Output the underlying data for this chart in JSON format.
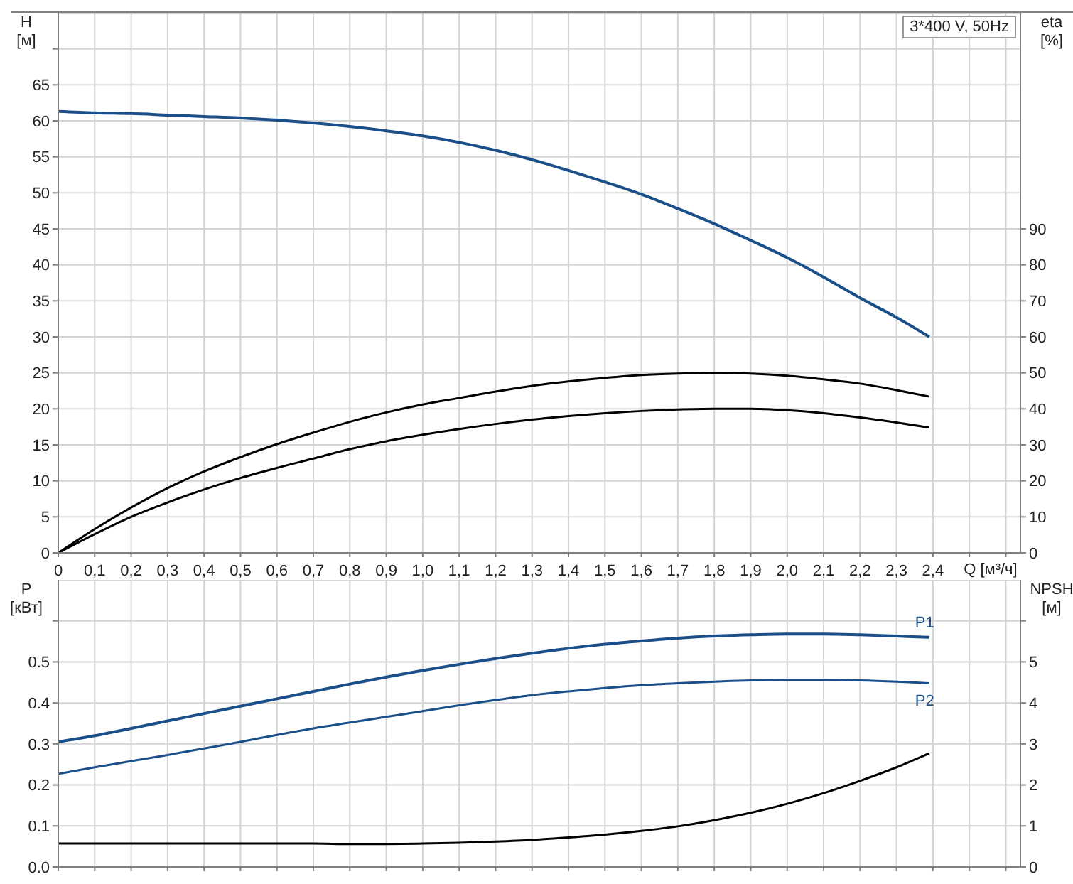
{
  "chart_data": [
    {
      "type": "line",
      "ylabel": "H [м]",
      "y2label": "eta [%]",
      "xlabel": "Q [м³/ч]",
      "annotations": [
        "3*400 V, 50Hz"
      ],
      "xlim": [
        0,
        2.64
      ],
      "xticks": [
        0,
        {
          "value": 0.1,
          "label": "0,1"
        },
        {
          "value": 0.2,
          "label": "0,2"
        },
        {
          "value": 0.3,
          "label": "0,3"
        },
        {
          "value": 0.4,
          "label": "0,4"
        },
        {
          "value": 0.5,
          "label": "0,5"
        },
        {
          "value": 0.6,
          "label": "0,6"
        },
        {
          "value": 0.7,
          "label": "0,7"
        },
        {
          "value": 0.8,
          "label": "0,8"
        },
        {
          "value": 0.9,
          "label": "0,9"
        },
        {
          "value": 1.0,
          "label": "1,0"
        },
        {
          "value": 1.1,
          "label": "1,1"
        },
        {
          "value": 1.2,
          "label": "1,2"
        },
        {
          "value": 1.3,
          "label": "1,3"
        },
        {
          "value": 1.4,
          "label": "1,4"
        },
        {
          "value": 1.5,
          "label": "1,5"
        },
        {
          "value": 1.6,
          "label": "1,6"
        },
        {
          "value": 1.7,
          "label": "1,7"
        },
        {
          "value": 1.8,
          "label": "1,8"
        },
        {
          "value": 1.9,
          "label": "1,9"
        },
        {
          "value": 2.0,
          "label": "2,0"
        },
        {
          "value": 2.1,
          "label": "2,1"
        },
        {
          "value": 2.2,
          "label": "2,2"
        },
        {
          "value": 2.3,
          "label": "2,3"
        },
        {
          "value": 2.4,
          "label": "2,4"
        },
        {
          "value": 2.5,
          "label": null
        },
        {
          "value": 2.6,
          "label": null
        }
      ],
      "ylim": [
        0,
        75
      ],
      "yticks": [
        0,
        5,
        10,
        15,
        20,
        25,
        30,
        35,
        40,
        45,
        50,
        55,
        60,
        65,
        {
          "value": 70,
          "label": null
        }
      ],
      "y2lim": [
        0,
        150
      ],
      "y2ticks": [
        0,
        10,
        20,
        30,
        40,
        50,
        60,
        70,
        80,
        90
      ],
      "grid": true,
      "legend": false,
      "marker": "none",
      "series": [
        {
          "color": "#1b4f8a",
          "x": [
            0,
            0.1,
            0.2,
            0.3,
            0.4,
            0.5,
            0.6,
            0.7,
            0.8,
            0.9,
            1.0,
            1.1,
            1.2,
            1.3,
            1.4,
            1.5,
            1.6,
            1.7,
            1.8,
            1.9,
            2.0,
            2.1,
            2.2,
            2.3,
            2.39
          ],
          "values": [
            61.3,
            61.1,
            61.0,
            60.8,
            60.6,
            60.4,
            60.1,
            59.7,
            59.2,
            58.6,
            57.9,
            57.0,
            55.9,
            54.6,
            53.1,
            51.5,
            49.8,
            47.8,
            45.7,
            43.4,
            41.0,
            38.3,
            35.4,
            32.7,
            30.0
          ]
        },
        {
          "color": "#000000",
          "axis": "y2",
          "x": [
            0,
            0.1,
            0.2,
            0.3,
            0.4,
            0.5,
            0.6,
            0.7,
            0.8,
            0.9,
            1.0,
            1.1,
            1.2,
            1.3,
            1.4,
            1.5,
            1.6,
            1.7,
            1.8,
            1.9,
            2.0,
            2.1,
            2.2,
            2.3,
            2.39
          ],
          "values": [
            0,
            6.6,
            12.6,
            18,
            22.6,
            26.6,
            30.2,
            33.4,
            36.4,
            39,
            41.2,
            43,
            44.8,
            46.4,
            47.6,
            48.6,
            49.4,
            49.8,
            50,
            49.8,
            49.2,
            48.2,
            47,
            45.2,
            43.4
          ]
        },
        {
          "color": "#000000",
          "axis": "y2",
          "x": [
            0,
            0.1,
            0.2,
            0.3,
            0.4,
            0.5,
            0.6,
            0.7,
            0.8,
            0.9,
            1.0,
            1.1,
            1.2,
            1.3,
            1.4,
            1.5,
            1.6,
            1.7,
            1.8,
            1.9,
            2.0,
            2.1,
            2.2,
            2.3,
            2.39
          ],
          "values": [
            0,
            5.2,
            10,
            14,
            17.6,
            20.8,
            23.6,
            26.2,
            28.8,
            31,
            32.8,
            34.4,
            35.8,
            37,
            38,
            38.8,
            39.4,
            39.8,
            40,
            40,
            39.6,
            38.8,
            37.6,
            36.2,
            34.8
          ]
        }
      ]
    },
    {
      "type": "line",
      "ylabel": "P [кВт]",
      "y2label": "NPSH [м]",
      "xlim": [
        0,
        2.64
      ],
      "xticks": [
        0,
        0.1,
        0.2,
        0.3,
        0.4,
        0.5,
        0.6,
        0.7,
        0.8,
        0.9,
        1.0,
        1.1,
        1.2,
        1.3,
        1.4,
        1.5,
        1.6,
        1.7,
        1.8,
        1.9,
        2.0,
        2.1,
        2.2,
        2.3,
        2.4,
        2.5,
        2.6
      ],
      "ylim": [
        0,
        0.7
      ],
      "yticks": [
        {
          "value": 0,
          "label": "0.0"
        },
        0.1,
        0.2,
        0.3,
        0.4,
        0.5,
        {
          "value": 0.6,
          "label": null
        }
      ],
      "y2lim": [
        0,
        7
      ],
      "y2ticks": [
        0,
        1,
        2,
        3,
        4,
        5,
        {
          "value": 6,
          "label": null
        }
      ],
      "tick_labels": "y",
      "grid": true,
      "legend": false,
      "marker": "none",
      "series": [
        {
          "name": "P1",
          "color": "#1b4f8a",
          "x": [
            0,
            0.1,
            0.2,
            0.3,
            0.4,
            0.5,
            0.6,
            0.7,
            0.8,
            0.9,
            1.0,
            1.1,
            1.2,
            1.3,
            1.4,
            1.5,
            1.6,
            1.7,
            1.8,
            1.9,
            2.0,
            2.1,
            2.2,
            2.3,
            2.39
          ],
          "values": [
            0.305,
            0.32,
            0.338,
            0.356,
            0.374,
            0.392,
            0.41,
            0.428,
            0.446,
            0.463,
            0.479,
            0.494,
            0.508,
            0.521,
            0.533,
            0.543,
            0.551,
            0.558,
            0.563,
            0.566,
            0.568,
            0.568,
            0.566,
            0.563,
            0.56
          ]
        },
        {
          "name": "P2",
          "color": "#1b4f8a",
          "x": [
            0,
            0.1,
            0.2,
            0.3,
            0.4,
            0.5,
            0.6,
            0.7,
            0.8,
            0.9,
            1.0,
            1.1,
            1.2,
            1.3,
            1.4,
            1.5,
            1.6,
            1.7,
            1.8,
            1.9,
            2.0,
            2.1,
            2.2,
            2.3,
            2.39
          ],
          "values": [
            0.227,
            0.243,
            0.258,
            0.273,
            0.289,
            0.305,
            0.322,
            0.338,
            0.352,
            0.366,
            0.38,
            0.394,
            0.407,
            0.419,
            0.428,
            0.436,
            0.443,
            0.448,
            0.452,
            0.455,
            0.456,
            0.456,
            0.455,
            0.452,
            0.448
          ]
        },
        {
          "color": "#000000",
          "axis": "y2",
          "x": [
            0,
            0.1,
            0.2,
            0.3,
            0.4,
            0.5,
            0.6,
            0.7,
            0.8,
            0.9,
            1.0,
            1.1,
            1.2,
            1.3,
            1.4,
            1.5,
            1.6,
            1.7,
            1.8,
            1.9,
            2.0,
            2.1,
            2.2,
            2.3,
            2.39
          ],
          "values": [
            0.57,
            0.57,
            0.57,
            0.57,
            0.57,
            0.57,
            0.57,
            0.57,
            0.56,
            0.56,
            0.57,
            0.59,
            0.62,
            0.66,
            0.72,
            0.79,
            0.88,
            0.99,
            1.14,
            1.32,
            1.54,
            1.8,
            2.1,
            2.43,
            2.77
          ]
        }
      ]
    }
  ]
}
